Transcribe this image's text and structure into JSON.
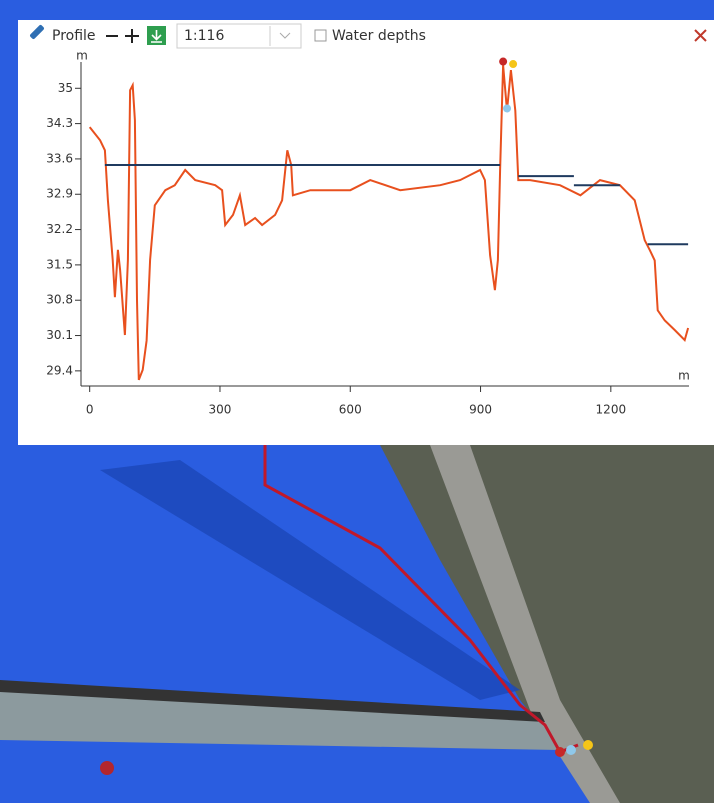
{
  "toolbar": {
    "title": "Profile",
    "scale": "1:116",
    "water_depths": "Water depths"
  },
  "chart_data": {
    "type": "line",
    "ylabel": "m",
    "xlabel": "m",
    "xlim": [
      -20,
      1380
    ],
    "ylim": [
      29.1,
      35.6
    ],
    "xticks": [
      0,
      300,
      600,
      900,
      1200
    ],
    "yticks": [
      35,
      34.3,
      33.6,
      32.9,
      32.2,
      31.5,
      30.8,
      30.1,
      29.4
    ],
    "series": [
      {
        "color": "#e8501e",
        "x": [
          0,
          24,
          35,
          42,
          53,
          58,
          65,
          70,
          81,
          88,
          93,
          99,
          104,
          109,
          113,
          122,
          131,
          139,
          150,
          174,
          196,
          220,
          243,
          289,
          305,
          312,
          330,
          346,
          358,
          381,
          397,
          427,
          443,
          455,
          464,
          468,
          508,
          600,
          646,
          715,
          807,
          853,
          899,
          910,
          922,
          933,
          940,
          945,
          952,
          961,
          970,
          980,
          987,
          1014,
          1083,
          1130,
          1175,
          1221,
          1255,
          1278,
          1290,
          1301,
          1308,
          1324,
          1347,
          1370,
          1378
        ],
        "values": [
          34.23,
          33.97,
          33.77,
          32.78,
          31.6,
          30.86,
          31.8,
          31.4,
          30.11,
          31.6,
          34.96,
          35.06,
          34.37,
          30.8,
          29.22,
          29.42,
          30.0,
          31.6,
          32.68,
          32.98,
          33.08,
          33.38,
          33.18,
          33.08,
          32.98,
          32.29,
          32.49,
          32.88,
          32.29,
          32.43,
          32.29,
          32.49,
          32.78,
          33.77,
          33.48,
          32.88,
          32.98,
          32.98,
          33.18,
          32.98,
          33.08,
          33.18,
          33.38,
          33.18,
          31.69,
          31.0,
          31.6,
          33.38,
          35.46,
          34.56,
          35.36,
          34.56,
          33.18,
          33.18,
          33.08,
          32.88,
          33.18,
          33.08,
          32.78,
          31.99,
          31.79,
          31.59,
          30.6,
          30.4,
          30.21,
          30.01,
          30.25
        ]
      },
      {
        "color": "#1f3a5f",
        "x": [
          35,
          945,
          null,
          987,
          1115,
          null,
          1115,
          1221,
          null,
          1285,
          1378
        ],
        "values": [
          33.48,
          33.48,
          null,
          33.26,
          33.26,
          null,
          33.08,
          33.08,
          null,
          31.91,
          31.91
        ]
      }
    ],
    "markers": {
      "x": [
        952,
        961,
        975
      ],
      "values": [
        35.53,
        34.6,
        35.48
      ],
      "colors": [
        "#c62828",
        "#8fc8ea",
        "#f5c518"
      ]
    }
  }
}
